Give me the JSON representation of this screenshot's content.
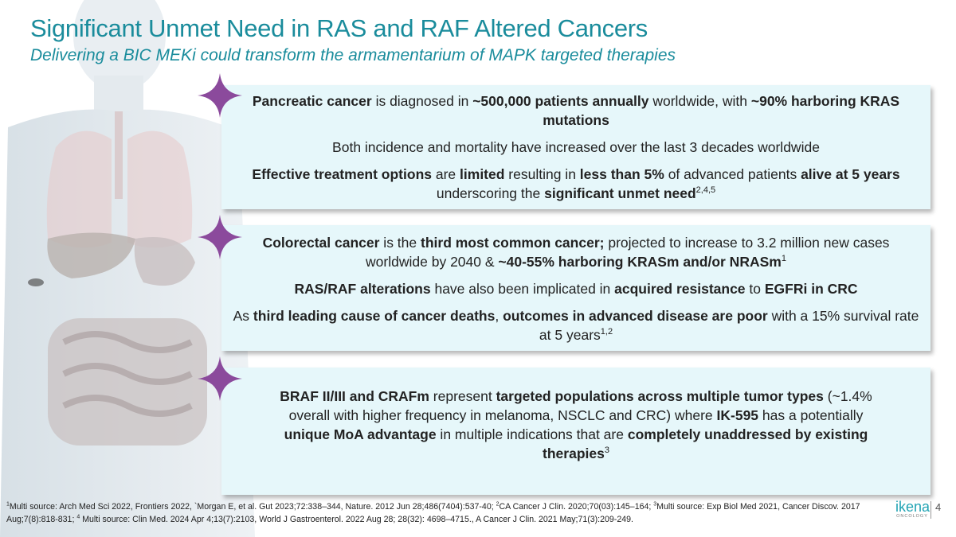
{
  "header": {
    "title": "Significant Unmet Need in RAS and RAF Altered Cancers",
    "subtitle": "Delivering a BIC MEKi could transform the armamentarium of MAPK targeted therapies"
  },
  "box1": {
    "p1": {
      "b1": "Pancreatic cancer",
      "t1": " is diagnosed in ",
      "b2": "~500,000 patients annually",
      "t2": " worldwide, with ",
      "b3": "~90% harboring KRAS mutations"
    },
    "p2": {
      "t1": "Both incidence and mortality have increased over the last 3 decades worldwide"
    },
    "p3": {
      "b1": "Effective treatment options",
      "t1": " are ",
      "b2": "limited",
      "t2": " resulting in ",
      "b3": "less than 5%",
      "t3": " of advanced patients ",
      "b4": "alive at 5 years",
      "t4": " underscoring the ",
      "b5": "significant unmet need",
      "sup": "2,4,5"
    }
  },
  "box2": {
    "p1": {
      "b1": "Colorectal cancer",
      "t1": " is the ",
      "b2": "third most common cancer;",
      "t2": " projected to increase to 3.2 million new cases worldwide by 2040 & ",
      "b3": "~40-55% harboring KRASm and/or NRASm",
      "sup": "1"
    },
    "p2": {
      "b1": "RAS/RAF alterations",
      "t1": " have also been implicated in ",
      "b2": "acquired resistance",
      "t2": " to ",
      "b3": "EGFRi in CRC"
    },
    "p3": {
      "t0": "As ",
      "b1": "third leading cause of cancer deaths",
      "t1": ", ",
      "b2": "outcomes in advanced disease are poor",
      "t2": " with a 15% survival rate at 5 years",
      "sup": "1,2"
    }
  },
  "box3": {
    "p1": {
      "b1": "BRAF II/III and CRAFm",
      "t1": " represent ",
      "b2": "targeted populations across multiple tumor types",
      "t2": " (~1.4% overall with higher frequency in melanoma, NSCLC and CRC) where ",
      "b3": "IK-595",
      "t3": " has a potentially ",
      "b4": "unique MoA advantage",
      "t4": " in multiple indications that are ",
      "b5": "completely unaddressed by existing therapies",
      "sup": "3"
    }
  },
  "footnote": {
    "s1": "1",
    "t1": "Multi source: Arch Med Sci 2022, Frontiers 2022, `Morgan E, et al. Gut 2023;72:338–344, Nature. 2012 Jun 28;486(7404):537-40; ",
    "s2": "2",
    "t2": "CA Cancer J Clin. 2020;70(03):145–164; ",
    "s3": "3",
    "t3": "Multi source: Exp Biol Med 2021, Cancer Discov. 2017 Aug;7(8):818-831; ",
    "s4": "4",
    "t4": " Multi source: Clin Med. 2024 Apr 4;13(7):2103, World J Gastroenterol. 2022 Aug 28; 28(32): 4698–4715., A Cancer J Clin. 2021 May;71(3):209-249."
  },
  "logo": {
    "word": "ikena",
    "sub": "ONCOLOGY"
  },
  "page_number": "4",
  "colors": {
    "title": "#1a8c9c",
    "box_bg": "#e6f7fa",
    "star": "#8b4a9c"
  }
}
